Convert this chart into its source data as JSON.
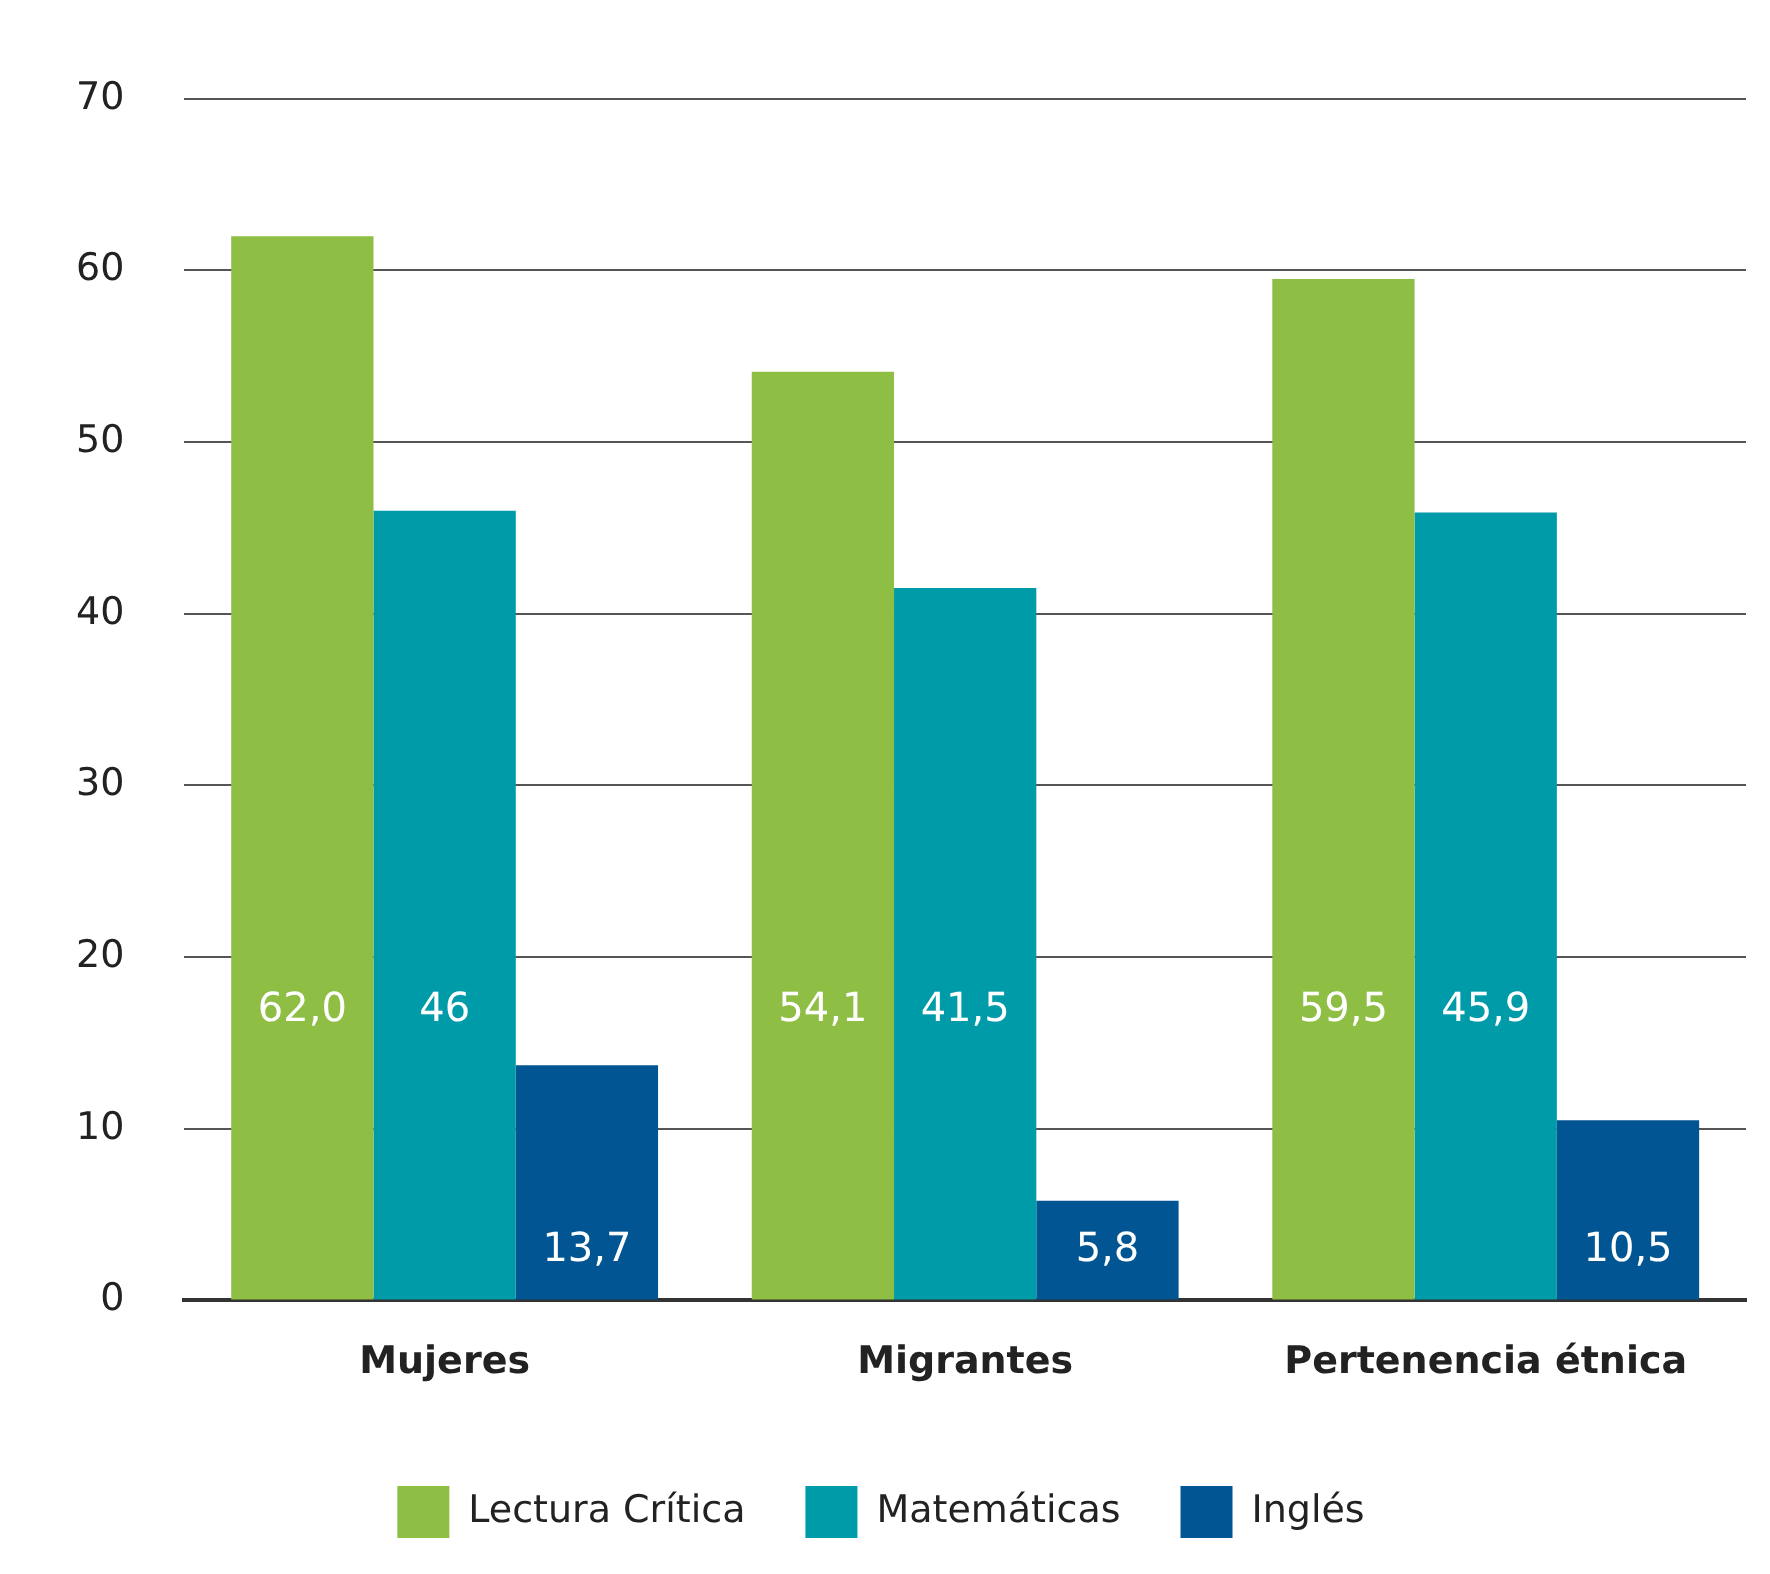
{
  "chart_data": {
    "type": "bar",
    "categories": [
      "Mujeres",
      "Migrantes",
      "Pertenencia étnica"
    ],
    "series": [
      {
        "name": "Lectura Crítica",
        "color": "#8fbe45",
        "values": [
          62.0,
          54.1,
          59.5
        ],
        "value_labels": [
          "62,0",
          "54,1",
          "59,5"
        ]
      },
      {
        "name": "Matemáticas",
        "color": "#009ba8",
        "values": [
          46,
          41.5,
          45.9
        ],
        "value_labels": [
          "46",
          "41,5",
          "45,9"
        ]
      },
      {
        "name": "Inglés",
        "color": "#005592",
        "values": [
          13.7,
          5.8,
          10.5
        ],
        "value_labels": [
          "13,7",
          "5,8",
          "10,5"
        ]
      }
    ],
    "ylim": [
      0,
      70
    ],
    "yticks": [
      0,
      10,
      20,
      30,
      40,
      50,
      60,
      70
    ],
    "grid": "y",
    "legend": "bottom"
  }
}
